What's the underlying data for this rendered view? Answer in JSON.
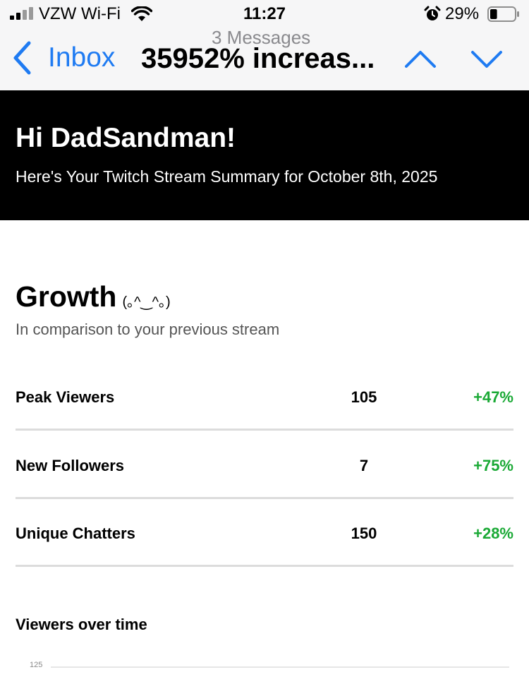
{
  "status_bar": {
    "carrier": "VZW Wi-Fi",
    "time": "11:27",
    "battery_percent": "29%",
    "battery_level": 0.29
  },
  "nav": {
    "back_label": "Inbox",
    "message_count": "3 Messages",
    "thread_title": "35952% increas...",
    "accent_color": "#1f7bf2"
  },
  "email": {
    "greeting": "Hi DadSandman!",
    "summary": "Here's Your Twitch Stream Summary for October 8th, 2025"
  },
  "growth": {
    "title": "Growth",
    "emoticon": "(｡^‿^｡)",
    "subtitle": "In comparison to your previous stream",
    "positive_color": "#1aa935",
    "stats": [
      {
        "label": "Peak Viewers",
        "value": "105",
        "change": "+47%"
      },
      {
        "label": "New Followers",
        "value": "7",
        "change": "+75%"
      },
      {
        "label": "Unique Chatters",
        "value": "150",
        "change": "+28%"
      }
    ]
  },
  "viewers_over_time": {
    "title": "Viewers over time",
    "y_ticks": [
      "125"
    ]
  }
}
